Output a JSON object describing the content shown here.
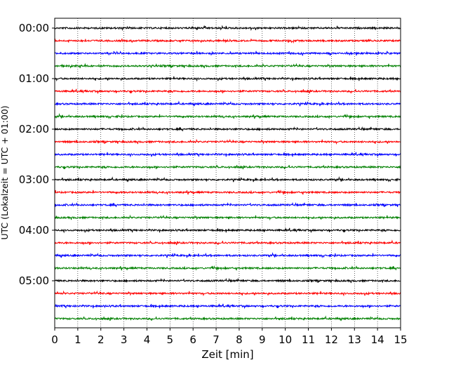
{
  "chart_data": {
    "type": "line",
    "title": "",
    "xlabel": "Zeit  [min]",
    "ylabel": "UTC (Lokalzeit = UTC + 01:00)",
    "xlim": [
      0,
      15
    ],
    "x_ticks": [
      0,
      1,
      2,
      3,
      4,
      5,
      6,
      7,
      8,
      9,
      10,
      11,
      12,
      13,
      14,
      15
    ],
    "x_tick_labels": [
      "0",
      "1",
      "2",
      "3",
      "4",
      "5",
      "6",
      "7",
      "8",
      "9",
      "10",
      "11",
      "12",
      "13",
      "14",
      "15"
    ],
    "y_tick_labels": [
      "00:00",
      "01:00",
      "02:00",
      "03:00",
      "04:00",
      "05:00"
    ],
    "trace_minutes": 15,
    "trace_count": 24,
    "colors": [
      "#000000",
      "#ff0000",
      "#0000ff",
      "#008000"
    ],
    "grid": "vertical dotted lines at each minute",
    "legend": "none"
  }
}
